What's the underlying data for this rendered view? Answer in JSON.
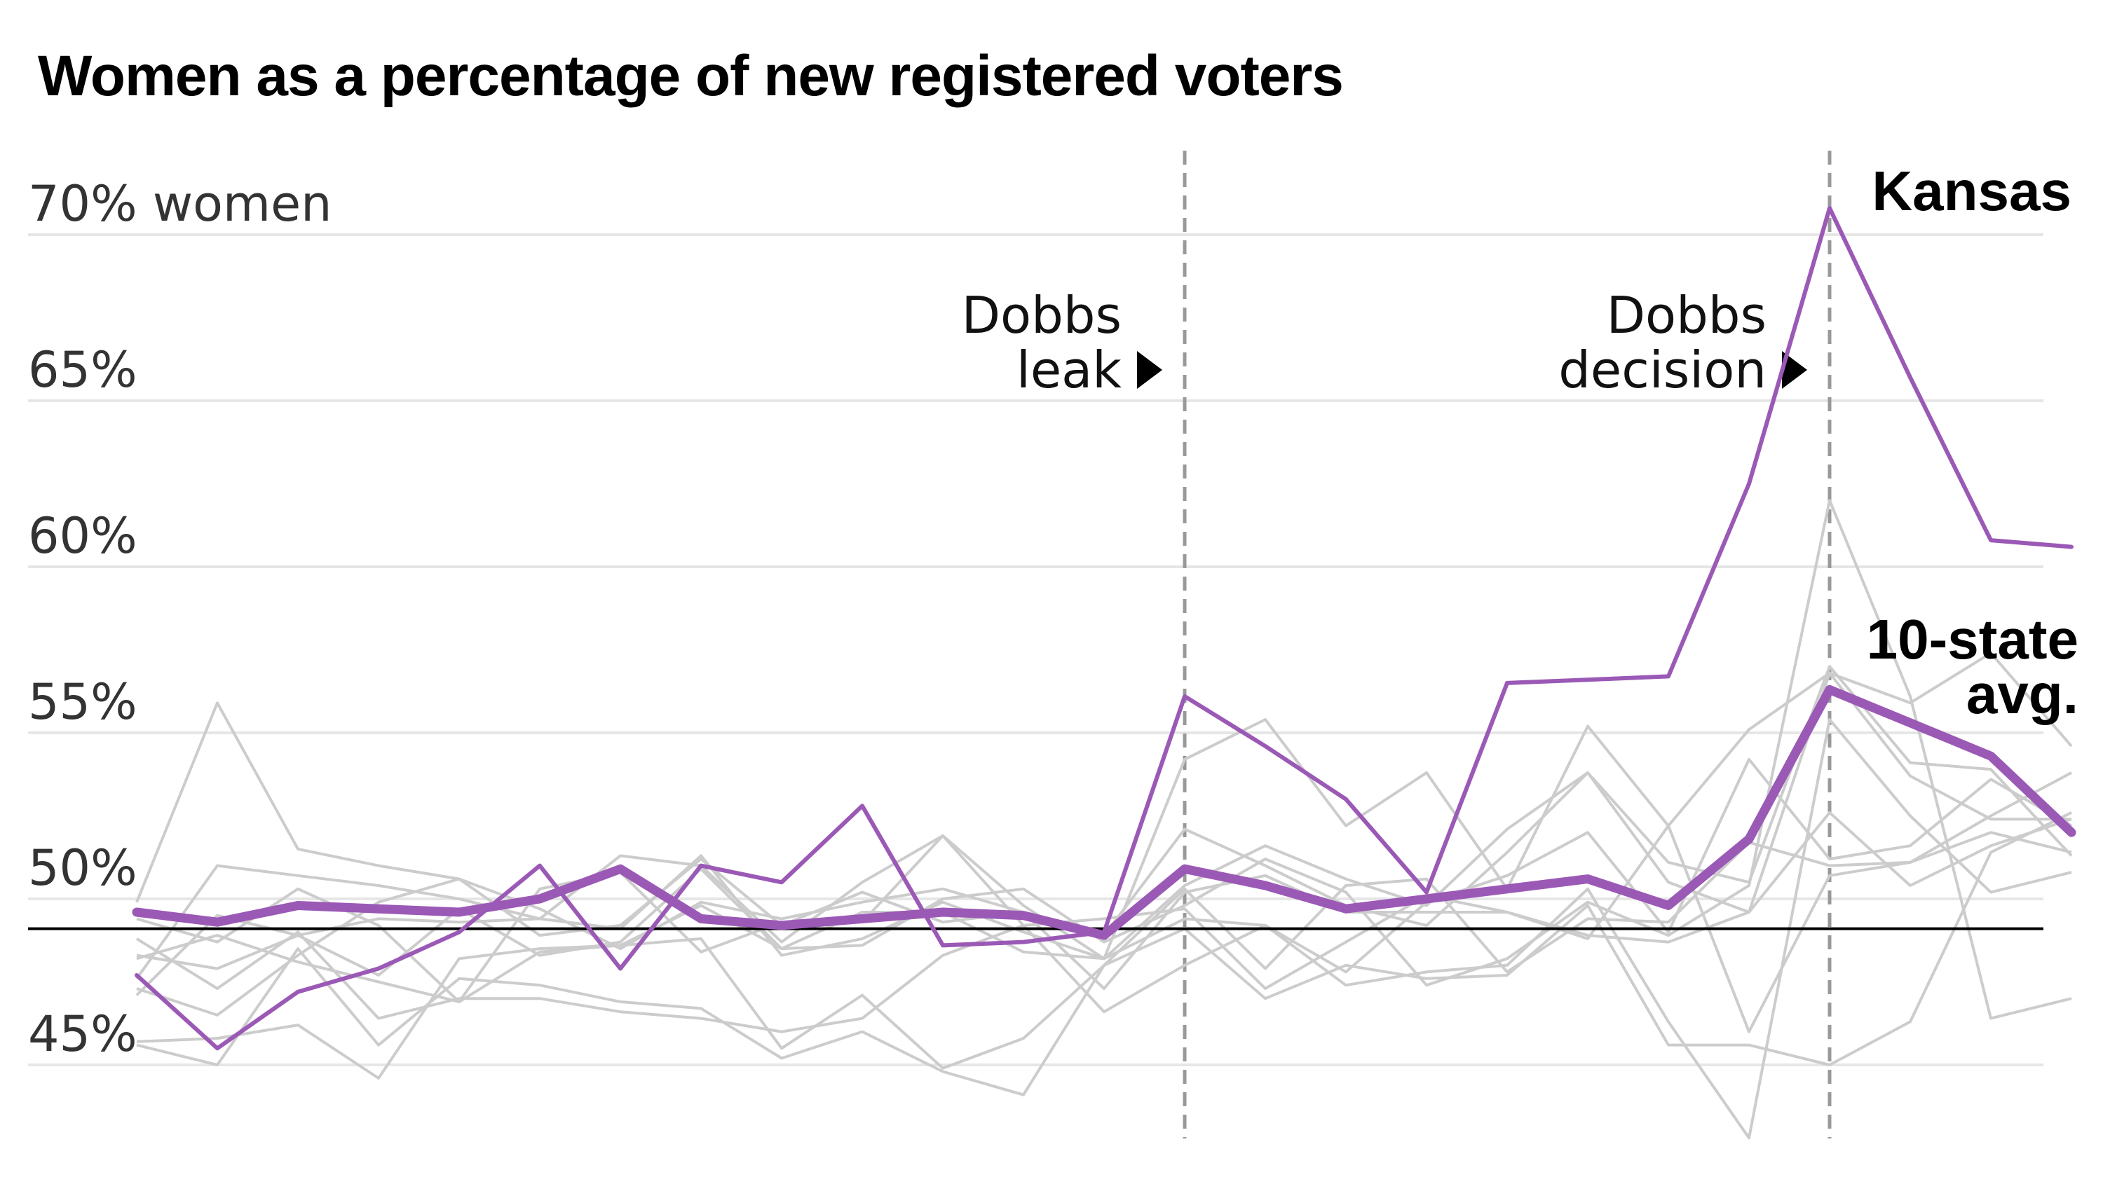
{
  "title": "Women as a percentage of new registered voters",
  "chart_data": {
    "type": "line",
    "title": "Women as a percentage of new registered voters",
    "ylim": [
      43,
      72
    ],
    "y_ticks": [
      {
        "value": 70,
        "label": "70% women"
      },
      {
        "value": 65,
        "label": "65%"
      },
      {
        "value": 60,
        "label": "60%"
      },
      {
        "value": 55,
        "label": "55%"
      },
      {
        "value": 50,
        "label": "50%"
      },
      {
        "value": 45,
        "label": "45%"
      }
    ],
    "grid": true,
    "baseline": 49.1,
    "x_count": 25,
    "events": [
      {
        "x": 13,
        "label_lines": [
          "Dobbs",
          "leak"
        ]
      },
      {
        "x": 21,
        "label_lines": [
          "Dobbs",
          "decision"
        ]
      }
    ],
    "highlight_color": "#9b59b6",
    "background_color": "#cccccc",
    "highlight_series": [
      {
        "name": "Kansas",
        "label_lines": [
          "Kansas"
        ],
        "values": [
          47.7,
          45.5,
          47.2,
          47.9,
          49.0,
          51.0,
          47.9,
          51.0,
          50.5,
          52.8,
          48.6,
          48.7,
          49.0,
          56.1,
          54.6,
          53.0,
          50.2,
          56.5,
          56.6,
          56.7,
          62.5,
          70.8,
          65.7,
          60.8,
          60.6
        ],
        "width": 6
      },
      {
        "name": "10-state avg.",
        "label_lines": [
          "10-state",
          "avg."
        ],
        "values": [
          49.6,
          49.3,
          49.8,
          49.7,
          49.6,
          50.0,
          50.9,
          49.4,
          49.2,
          49.4,
          49.6,
          49.5,
          48.9,
          50.9,
          50.4,
          49.7,
          50.0,
          50.3,
          50.6,
          49.8,
          51.8,
          56.3,
          55.3,
          54.3,
          52.0
        ],
        "width": 13
      }
    ],
    "background_series": [
      {
        "values": [
          49.9,
          55.9,
          51.5,
          51.0,
          50.6,
          49.7,
          48.5,
          49.9,
          49.4,
          49.9,
          50.3,
          49.6,
          48.9,
          52.1,
          51.0,
          49.8,
          49.2,
          51.4,
          53.8,
          50.5,
          49.6,
          52.6,
          50.4,
          51.6,
          52.4
        ]
      },
      {
        "values": [
          47.6,
          51.0,
          50.7,
          50.4,
          50.0,
          49.4,
          51.3,
          51.0,
          48.7,
          50.5,
          51.9,
          49.8,
          48.2,
          50.4,
          51.6,
          50.6,
          49.8,
          52.1,
          53.8,
          51.1,
          50.5,
          57.0,
          54.1,
          53.9,
          51.3
        ]
      },
      {
        "values": [
          48.3,
          47.9,
          48.9,
          47.7,
          49.7,
          48.3,
          48.7,
          50.9,
          48.5,
          49.6,
          49.6,
          48.4,
          48.2,
          54.2,
          55.4,
          52.2,
          53.8,
          50.3,
          55.2,
          52.2,
          55.1,
          56.8,
          55.9,
          57.4,
          54.6
        ]
      },
      {
        "values": [
          45.6,
          45.0,
          48.5,
          45.6,
          47.6,
          47.4,
          46.9,
          46.7,
          45.2,
          46.0,
          44.8,
          44.1,
          48.0,
          50.3,
          47.9,
          50.4,
          50.6,
          47.8,
          49.4,
          49.3,
          51.7,
          51.0,
          51.1,
          52.5,
          53.8
        ]
      },
      {
        "values": [
          45.7,
          45.8,
          46.2,
          44.6,
          48.2,
          48.5,
          48.6,
          48.8,
          45.5,
          47.1,
          44.9,
          45.8,
          48.0,
          49.1,
          47.0,
          48.0,
          47.6,
          47.7,
          49.8,
          45.6,
          45.6,
          45.0,
          46.3,
          51.4,
          52.6
        ]
      },
      {
        "values": [
          47.3,
          46.5,
          48.3,
          49.9,
          50.6,
          48.9,
          49.2,
          51.2,
          49.2,
          50.2,
          49.3,
          49.6,
          47.3,
          50.2,
          50.7,
          49.6,
          49.6,
          49.6,
          48.9,
          48.7,
          49.6,
          56.8,
          53.7,
          52.4,
          52.4
        ]
      },
      {
        "values": [
          47.1,
          49.5,
          48.9,
          49.4,
          49.3,
          49.4,
          49.1,
          51.3,
          48.3,
          48.8,
          49.9,
          49.0,
          48.2,
          49.4,
          49.2,
          47.8,
          49.9,
          50.7,
          52.0,
          49.0,
          54.2,
          51.2,
          51.6,
          53.6,
          52.2
        ]
      },
      {
        "values": [
          48.2,
          48.9,
          48.1,
          47.5,
          46.9,
          48.4,
          48.6,
          49.8,
          48.5,
          48.6,
          50.0,
          50.3,
          48.7,
          49.8,
          51.2,
          50.2,
          47.4,
          48.2,
          49.9,
          48.9,
          50.4,
          62.0,
          56.1,
          46.4,
          47.0
        ]
      },
      {
        "values": [
          49.4,
          48.7,
          50.3,
          49.2,
          46.9,
          50.3,
          50.8,
          48.4,
          49.3,
          49.3,
          51.9,
          49.2,
          49.4,
          49.7,
          47.3,
          48.7,
          50.1,
          49.6,
          48.8,
          52.2,
          46.0,
          50.7,
          51.1,
          52.0,
          51.4
        ]
      },
      {
        "values": [
          48.8,
          47.3,
          49.0,
          46.4,
          47.0,
          47.0,
          46.6,
          46.4,
          46.0,
          46.4,
          48.3,
          49.2,
          46.6,
          48.0,
          49.2,
          47.4,
          47.8,
          48.0,
          50.3,
          46.3,
          42.8,
          55.4,
          52.5,
          50.2,
          50.8
        ]
      }
    ]
  }
}
